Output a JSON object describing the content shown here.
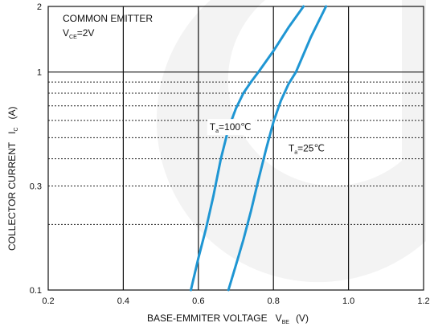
{
  "chart_data": {
    "type": "line",
    "title": "",
    "xlabel": "BASE-EMMITER VOLTAGE",
    "xlabel_symbol": {
      "main": "V",
      "sub": "BE",
      "unit": "(V)"
    },
    "ylabel": "COLLECTOR CURRENT",
    "ylabel_symbol": {
      "main": "I",
      "sub": "C",
      "unit": "(A)"
    },
    "xlim": [
      0.2,
      1.2
    ],
    "ylim": [
      0.1,
      2
    ],
    "yscale": "log",
    "x_ticks": [
      0.2,
      0.4,
      0.6,
      0.8,
      1.0,
      1.2
    ],
    "x_tick_labels": [
      "0.2",
      "0.4",
      "0.6",
      "0.8",
      "1.0",
      "1.2"
    ],
    "y_tick_labels": [
      {
        "value": 0.1,
        "label": "0.1"
      },
      {
        "value": 0.3,
        "label": "0.3"
      },
      {
        "value": 1,
        "label": "1"
      },
      {
        "value": 2,
        "label": "2"
      }
    ],
    "grid": {
      "vertical_solid": [
        0.4,
        0.6,
        0.8,
        1.0
      ],
      "horizontal_solid": [
        1
      ],
      "horizontal_dotted": [
        0.2,
        0.3,
        0.4,
        0.5,
        0.6,
        0.7,
        0.8,
        0.9
      ]
    },
    "annotation": {
      "line1": "COMMON EMITTER",
      "line2_main": "V",
      "line2_sub": "CE",
      "line2_rest": "=2V"
    },
    "series": [
      {
        "name": "Ta=100℃",
        "label_main": "T",
        "label_sub": "a",
        "label_rest": "=100℃",
        "color": "#1f96d3",
        "x": [
          0.58,
          0.6,
          0.62,
          0.64,
          0.66,
          0.68,
          0.7,
          0.72,
          0.74,
          0.76,
          0.8,
          0.84,
          0.88
        ],
        "y": [
          0.1,
          0.14,
          0.19,
          0.27,
          0.4,
          0.55,
          0.68,
          0.8,
          0.9,
          1.0,
          1.25,
          1.6,
          2.0
        ]
      },
      {
        "name": "Ta=25℃",
        "label_main": "T",
        "label_sub": "a",
        "label_rest": "=25℃",
        "color": "#1f96d3",
        "x": [
          0.68,
          0.7,
          0.72,
          0.74,
          0.76,
          0.78,
          0.8,
          0.82,
          0.84,
          0.86,
          0.9,
          0.94
        ],
        "y": [
          0.1,
          0.13,
          0.17,
          0.23,
          0.32,
          0.44,
          0.59,
          0.74,
          0.88,
          1.0,
          1.45,
          2.0
        ]
      }
    ],
    "series_label_positions": [
      {
        "x": 0.63,
        "y": 0.55
      },
      {
        "x": 0.84,
        "y": 0.44
      }
    ]
  }
}
